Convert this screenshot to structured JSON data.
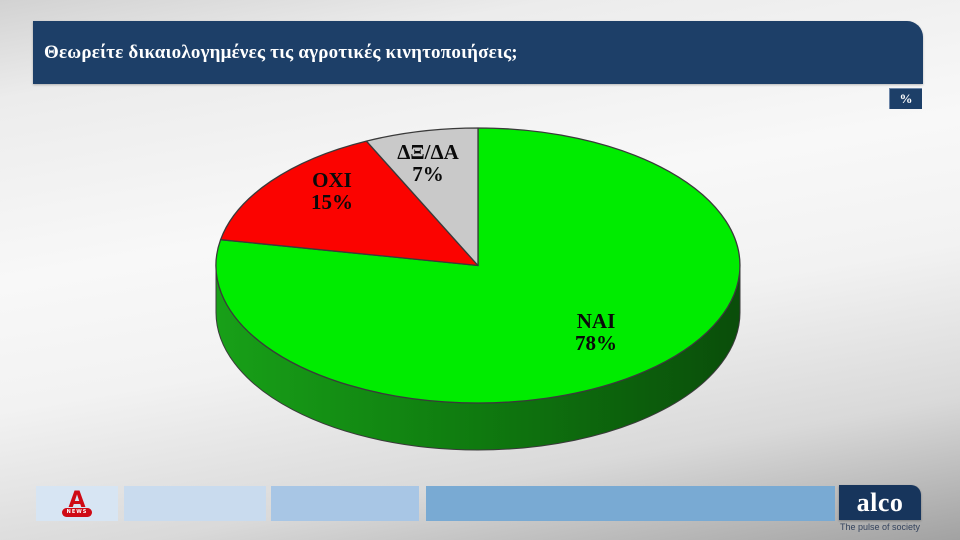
{
  "header": {
    "title": "Θεωρείτε δικαιολογημένες τις αγροτικές κινητοποιήσεις;",
    "percent_badge": "%"
  },
  "colors": {
    "header_navy": "#1d3f68",
    "badge_navy": "#1d3f68",
    "alco_navy": "#17355c",
    "slice_outline": "#3a3a3a"
  },
  "chart_data": {
    "type": "pie",
    "title": "Θεωρείτε δικαιολογημένες τις αγροτικές κινητοποιήσεις;",
    "unit": "%",
    "effect": "3d",
    "start_angle_deg": -90,
    "direction": "clockwise",
    "slices": [
      {
        "name": "ΝΑΙ",
        "value": 78,
        "value_label": "78%",
        "color": "#00ec00"
      },
      {
        "name": "ΟΧΙ",
        "value": 15,
        "value_label": "15%",
        "color": "#fb0300"
      },
      {
        "name": "ΔΞ/ΔΑ",
        "value": 7,
        "value_label": "7%",
        "color": "#c9c9c9"
      }
    ],
    "side_gradient": [
      "#18a018",
      "#0f7a0f",
      "#0a4d0a"
    ],
    "legend": "none",
    "labels_on_slices": true
  },
  "footer": {
    "segment_colors": [
      "#d7e5f3",
      "#c9dbee",
      "#a8c6e5",
      "#79aad3"
    ],
    "alpha": {
      "letter": "A",
      "news_label": "NEWS",
      "color": "#cf0a14"
    },
    "alco": {
      "name": "alco",
      "tagline": "The pulse of society"
    }
  }
}
